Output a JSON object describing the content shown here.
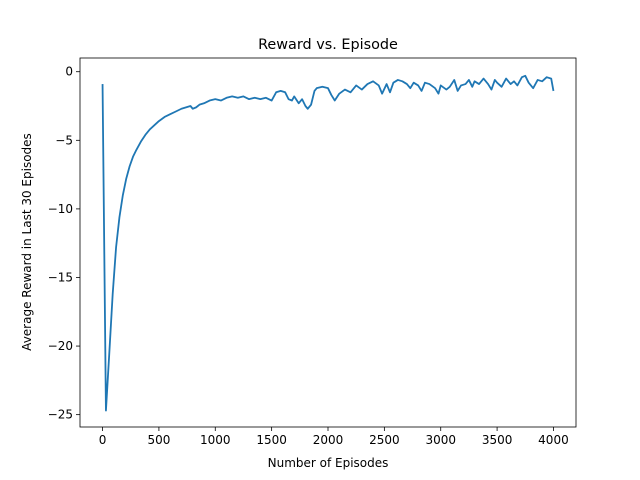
{
  "chart_data": {
    "type": "line",
    "title": "Reward vs. Episode",
    "xlabel": "Number of Episodes",
    "ylabel": "Average Reward in Last 30 Episodes",
    "xlim": [
      -200,
      4200
    ],
    "ylim": [
      -25.9,
      1.0
    ],
    "xticks": [
      0,
      500,
      1000,
      1500,
      2000,
      2500,
      3000,
      3500,
      4000
    ],
    "yticks": [
      0,
      -5,
      -10,
      -15,
      -20,
      -25
    ],
    "grid": false,
    "line_color": "#1f77b4",
    "series": [
      {
        "x": [
          0,
          30,
          60,
          90,
          120,
          150,
          180,
          210,
          240,
          270,
          300,
          340,
          380,
          420,
          460,
          500,
          550,
          600,
          650,
          700,
          740,
          780,
          800,
          830,
          860,
          900,
          950,
          1000,
          1050,
          1100,
          1150,
          1200,
          1250,
          1300,
          1350,
          1400,
          1450,
          1500,
          1540,
          1580,
          1620,
          1650,
          1680,
          1700,
          1740,
          1770,
          1800,
          1820,
          1850,
          1880,
          1900,
          1950,
          2000,
          2030,
          2060,
          2100,
          2150,
          2200,
          2250,
          2300,
          2350,
          2400,
          2450,
          2480,
          2520,
          2550,
          2580,
          2620,
          2660,
          2700,
          2730,
          2760,
          2800,
          2830,
          2860,
          2900,
          2950,
          2980,
          3000,
          3050,
          3080,
          3120,
          3150,
          3180,
          3220,
          3250,
          3280,
          3300,
          3340,
          3380,
          3420,
          3450,
          3480,
          3500,
          3540,
          3580,
          3620,
          3650,
          3680,
          3720,
          3750,
          3780,
          3820,
          3860,
          3900,
          3940,
          3980,
          4000
        ],
        "y": [
          -0.9,
          -24.7,
          -20.5,
          -16.2,
          -12.8,
          -10.6,
          -9.0,
          -7.8,
          -6.9,
          -6.2,
          -5.7,
          -5.1,
          -4.6,
          -4.2,
          -3.9,
          -3.6,
          -3.3,
          -3.1,
          -2.9,
          -2.7,
          -2.6,
          -2.5,
          -2.7,
          -2.6,
          -2.4,
          -2.3,
          -2.1,
          -2.0,
          -2.1,
          -1.9,
          -1.8,
          -1.9,
          -1.8,
          -2.0,
          -1.9,
          -2.0,
          -1.9,
          -2.1,
          -1.5,
          -1.4,
          -1.5,
          -2.0,
          -2.1,
          -1.8,
          -2.3,
          -2.0,
          -2.5,
          -2.7,
          -2.4,
          -1.4,
          -1.2,
          -1.1,
          -1.2,
          -1.7,
          -2.1,
          -1.6,
          -1.3,
          -1.5,
          -1.0,
          -1.3,
          -0.9,
          -0.7,
          -1.0,
          -1.6,
          -0.9,
          -1.5,
          -0.8,
          -0.6,
          -0.7,
          -0.9,
          -1.2,
          -0.8,
          -1.0,
          -1.4,
          -0.8,
          -0.9,
          -1.2,
          -1.6,
          -1.0,
          -1.3,
          -1.1,
          -0.6,
          -1.4,
          -1.0,
          -0.9,
          -0.6,
          -1.1,
          -0.7,
          -0.9,
          -0.5,
          -0.9,
          -1.3,
          -0.6,
          -0.8,
          -1.1,
          -0.5,
          -0.9,
          -0.7,
          -1.0,
          -0.4,
          -0.3,
          -0.8,
          -1.2,
          -0.6,
          -0.7,
          -0.4,
          -0.5,
          -1.4
        ]
      }
    ]
  }
}
